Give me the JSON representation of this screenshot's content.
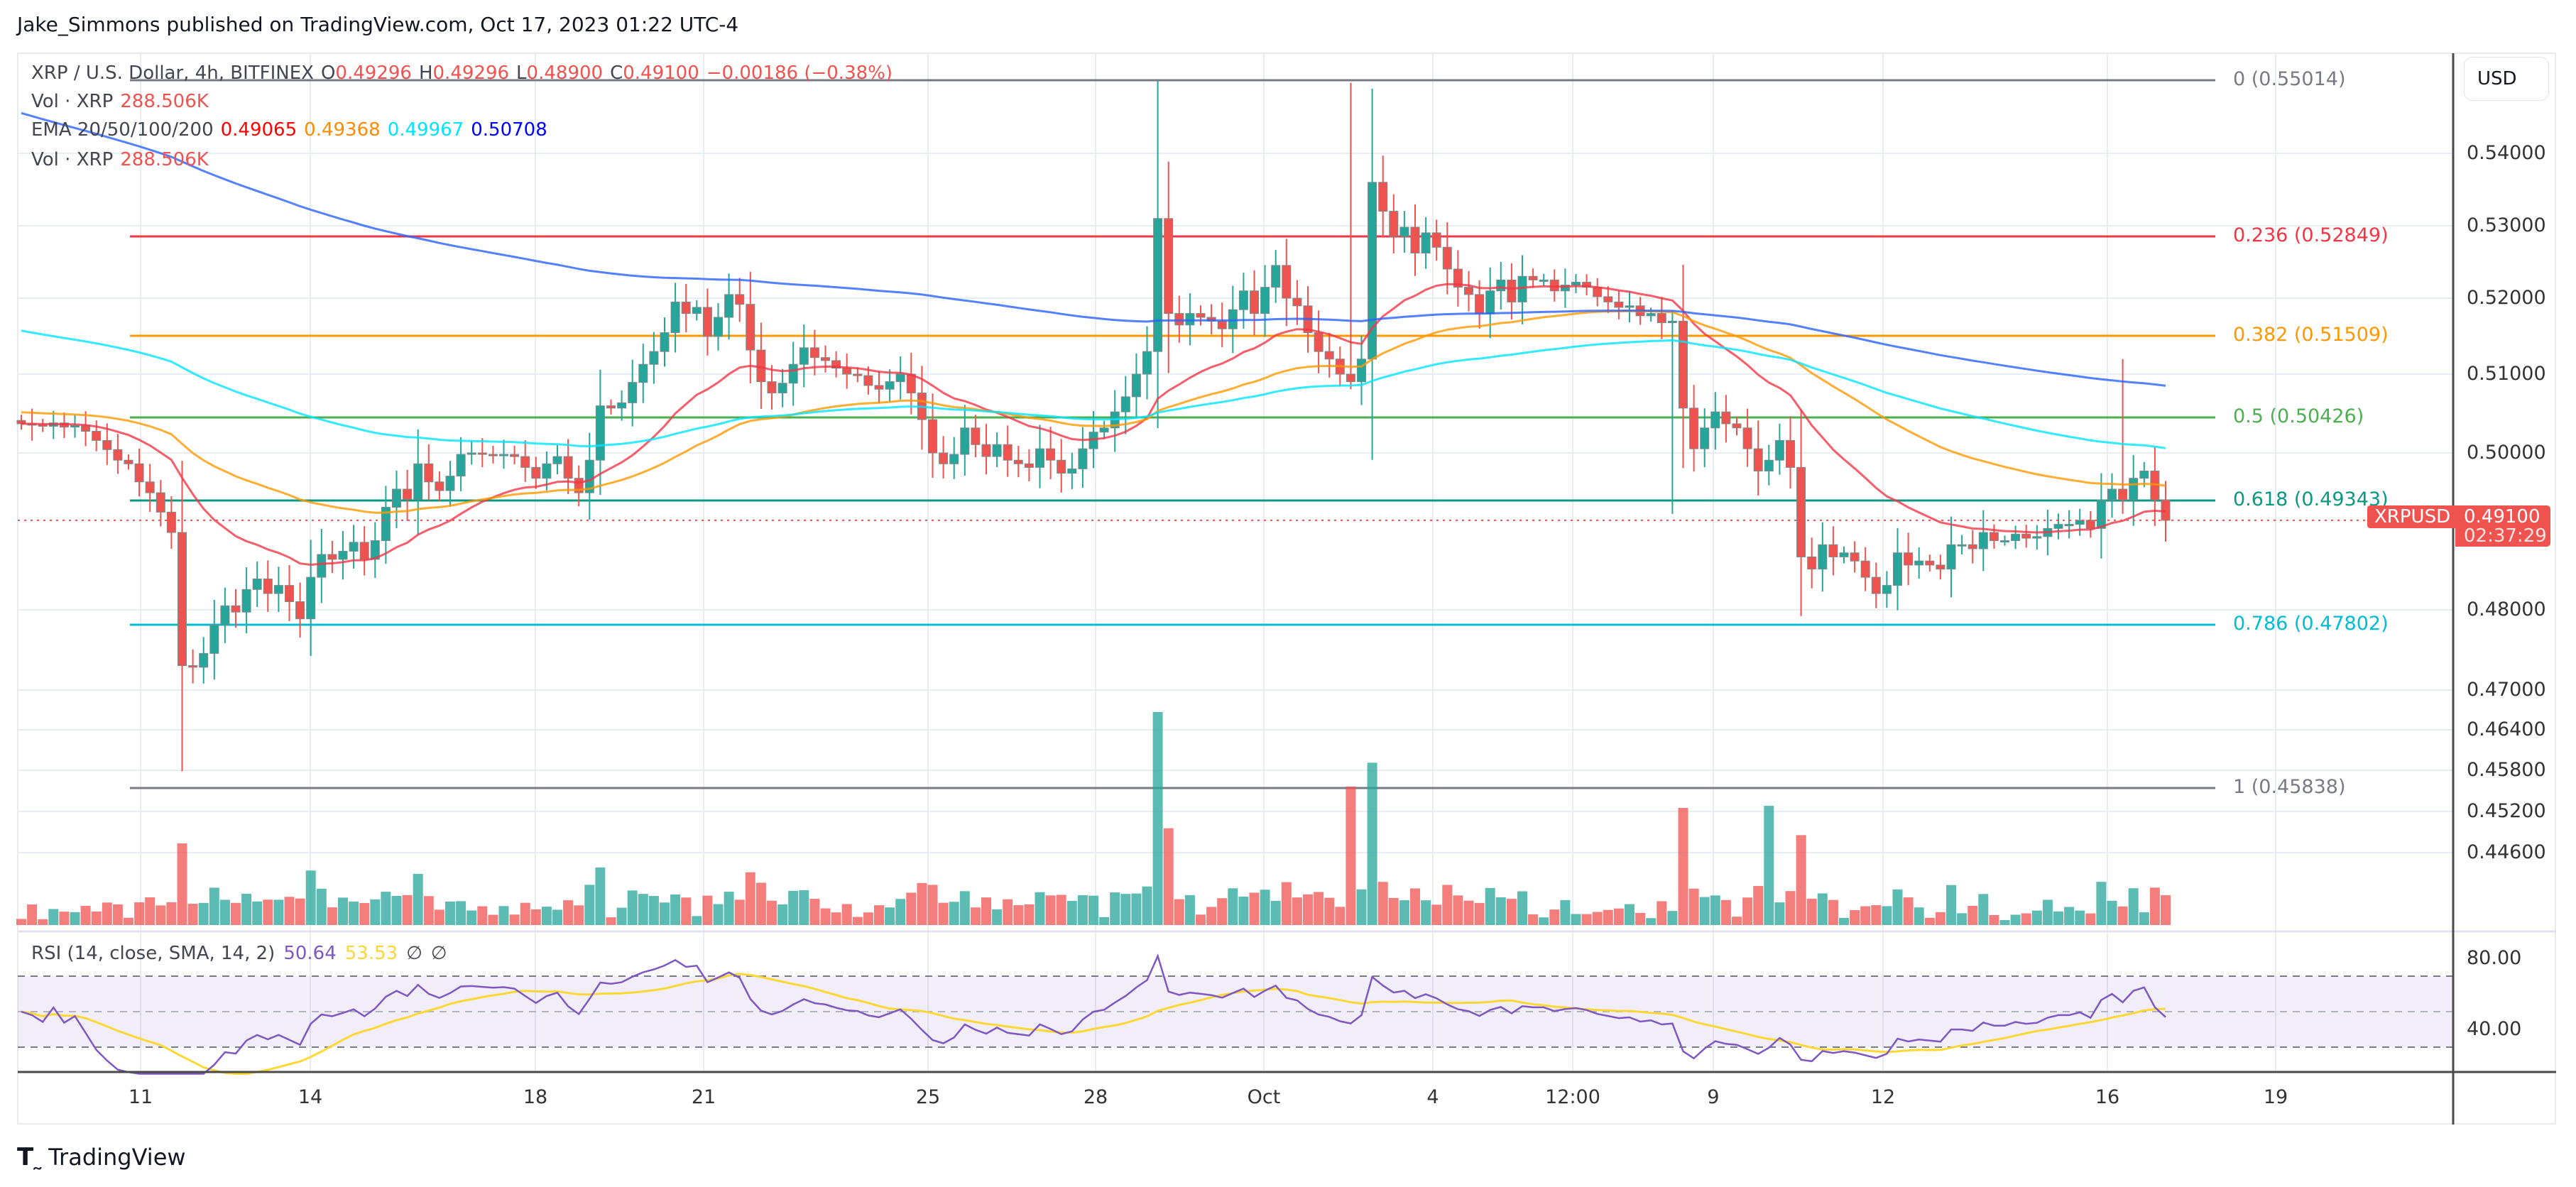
{
  "header": {
    "published": "Jake_Simmons published on TradingView.com, Oct 17, 2023 01:22 UTC-4"
  },
  "legend": {
    "symbol": "XRP / U.S. Dollar, 4h, BITFINEX",
    "o_label": "O",
    "o": "0.49296",
    "h_label": "H",
    "h": "0.49296",
    "l_label": "L",
    "l": "0.48900",
    "c_label": "C",
    "c": "0.49100",
    "change": "−0.00186 (−0.38%)",
    "vol_label": "Vol · XRP",
    "vol": "288.506K",
    "ema_label": "EMA 20/50/100/200",
    "ema20": "0.49065",
    "ema50": "0.49368",
    "ema100": "0.49967",
    "ema200": "0.50708",
    "vol2_label": "Vol · XRP",
    "vol2": "288.506K"
  },
  "rsi_legend": {
    "label": "RSI (14, close, SMA, 14, 2)",
    "rsi": "50.64",
    "sma": "53.53",
    "n1": "∅",
    "n2": "∅"
  },
  "price_axis": {
    "currency_button": "USD",
    "ticks": [
      {
        "label": "0.54000",
        "y": 216
      },
      {
        "label": "0.53000",
        "y": 318
      },
      {
        "label": "0.52000",
        "y": 420
      },
      {
        "label": "0.51000",
        "y": 527
      },
      {
        "label": "0.50000",
        "y": 638
      },
      {
        "label": "0.48000",
        "y": 859
      },
      {
        "label": "0.47000",
        "y": 972
      },
      {
        "label": "0.46400",
        "y": 1028
      },
      {
        "label": "0.45800",
        "y": 1085
      },
      {
        "label": "0.45200",
        "y": 1143
      },
      {
        "label": "0.44600",
        "y": 1201
      }
    ],
    "rsi_ticks": [
      {
        "label": "80.00",
        "y": 1350
      },
      {
        "label": "40.00",
        "y": 1450
      }
    ]
  },
  "last_price": {
    "symbol": "XRPUSD",
    "price": "0.49100",
    "countdown": "02:37:29",
    "color": "#ef5350"
  },
  "time_axis": [
    {
      "label": "11",
      "x": 198
    },
    {
      "label": "14",
      "x": 437
    },
    {
      "label": "18",
      "x": 754
    },
    {
      "label": "21",
      "x": 991
    },
    {
      "label": "25",
      "x": 1307
    },
    {
      "label": "28",
      "x": 1543
    },
    {
      "label": "Oct",
      "x": 1780
    },
    {
      "label": "4",
      "x": 2018
    },
    {
      "label": "12:00",
      "x": 2215
    },
    {
      "label": "9",
      "x": 2413
    },
    {
      "label": "12",
      "x": 2652
    },
    {
      "label": "16",
      "x": 2968
    },
    {
      "label": "19",
      "x": 3205
    }
  ],
  "colors": {
    "up": "#26a69a",
    "down": "#ef5350",
    "ema20": "#f23645",
    "ema50": "#ff9800",
    "ema100": "#00e5ff",
    "ema200": "#2962ff",
    "rsi": "#7e57c2",
    "rsi_sma": "#fdd835"
  },
  "branding": {
    "logo": "TradingView"
  },
  "chart_data": {
    "type": "candlestick",
    "title": "XRP / U.S. Dollar, 4h, BITFINEX",
    "xlabel": "",
    "ylabel": "USD",
    "ylim": [
      0.446,
      0.551
    ],
    "x_ticks": [
      "11",
      "14",
      "18",
      "21",
      "25",
      "28",
      "Oct",
      "4",
      "12:00",
      "9",
      "12",
      "16",
      "19"
    ],
    "fibonacci": [
      {
        "level": "0",
        "price": 0.55014,
        "label": "0 (0.55014)",
        "color": "#787b86",
        "y": 113
      },
      {
        "level": "0.236",
        "price": 0.52849,
        "label": "0.236 (0.52849)",
        "color": "#f23645",
        "y": 333
      },
      {
        "level": "0.382",
        "price": 0.51509,
        "label": "0.382 (0.51509)",
        "color": "#ff9800",
        "y": 473
      },
      {
        "level": "0.5",
        "price": 0.50426,
        "label": "0.5 (0.50426)",
        "color": "#4caf50",
        "y": 588
      },
      {
        "level": "0.618",
        "price": 0.49343,
        "label": "0.618 (0.49343)",
        "color": "#089981",
        "y": 705
      },
      {
        "level": "0.786",
        "price": 0.47802,
        "label": "0.786 (0.47802)",
        "color": "#00bcd4",
        "y": 880
      },
      {
        "level": "1",
        "price": 0.45838,
        "label": "1 (0.45838)",
        "color": "#787b86",
        "y": 1110
      }
    ],
    "last": {
      "open": 0.49296,
      "high": 0.49296,
      "low": 0.489,
      "close": 0.491,
      "volume": "288.506K"
    },
    "ema": {
      "ema20": 0.49065,
      "ema50": 0.49368,
      "ema100": 0.49967,
      "ema200": 0.50708
    },
    "rsi": {
      "value": 50.64,
      "sma": 53.53,
      "upper_band": 70,
      "middle": 50,
      "lower_band": 30
    },
    "candles_close_estimated": [
      0.5035,
      0.5034,
      0.5032,
      0.5036,
      0.5031,
      0.5033,
      0.5026,
      0.5015,
      0.5004,
      0.499,
      0.4985,
      0.496,
      0.4945,
      0.492,
      0.4895,
      0.473,
      0.4728,
      0.4745,
      0.478,
      0.4805,
      0.4797,
      0.4825,
      0.4838,
      0.482,
      0.483,
      0.481,
      0.4788,
      0.484,
      0.4868,
      0.4862,
      0.4872,
      0.4883,
      0.4862,
      0.4885,
      0.4926,
      0.495,
      0.4936,
      0.4985,
      0.496,
      0.4948,
      0.4968,
      0.4998,
      0.5,
      0.4998,
      0.4996,
      0.4998,
      0.4995,
      0.498,
      0.4965,
      0.4985,
      0.4995,
      0.4965,
      0.4945,
      0.499,
      0.5058,
      0.5055,
      0.5062,
      0.5089,
      0.5113,
      0.513,
      0.5155,
      0.5195,
      0.518,
      0.5188,
      0.515,
      0.5175,
      0.5205,
      0.5192,
      0.5132,
      0.509,
      0.5075,
      0.5088,
      0.5113,
      0.5135,
      0.5122,
      0.5118,
      0.5108,
      0.51,
      0.5098,
      0.5085,
      0.508,
      0.509,
      0.51,
      0.5075,
      0.504,
      0.5,
      0.4985,
      0.4998,
      0.503,
      0.501,
      0.4995,
      0.501,
      0.499,
      0.4985,
      0.498,
      0.5005,
      0.499,
      0.4972,
      0.4978,
      0.5005,
      0.5025,
      0.503,
      0.505,
      0.507,
      0.51,
      0.513,
      0.531,
      0.518,
      0.5165,
      0.518,
      0.5175,
      0.517,
      0.516,
      0.5185,
      0.521,
      0.518,
      0.5215,
      0.5245,
      0.52,
      0.519,
      0.5155,
      0.513,
      0.512,
      0.51,
      0.509,
      0.512,
      0.536,
      0.532,
      0.5285,
      0.5298,
      0.5262,
      0.529,
      0.527,
      0.524,
      0.5215,
      0.5205,
      0.518,
      0.521,
      0.5225,
      0.5195,
      0.523,
      0.5225,
      0.5225,
      0.521,
      0.5218,
      0.5222,
      0.5215,
      0.5202,
      0.5195,
      0.5188,
      0.519,
      0.5177,
      0.518,
      0.5168,
      0.517,
      0.5055,
      0.5005,
      0.503,
      0.505,
      0.5035,
      0.503,
      0.5005,
      0.4975,
      0.499,
      0.5015,
      0.498,
      0.4865,
      0.485,
      0.488,
      0.4865,
      0.487,
      0.486,
      0.484,
      0.482,
      0.483,
      0.487,
      0.4855,
      0.486,
      0.4855,
      0.485,
      0.488,
      0.488,
      0.4875,
      0.4895,
      0.4885,
      0.4885,
      0.4893,
      0.4888,
      0.489,
      0.49,
      0.4905,
      0.4905,
      0.491,
      0.49,
      0.4935,
      0.495,
      0.4935,
      0.4965,
      0.4975,
      0.4935,
      0.491
    ]
  }
}
